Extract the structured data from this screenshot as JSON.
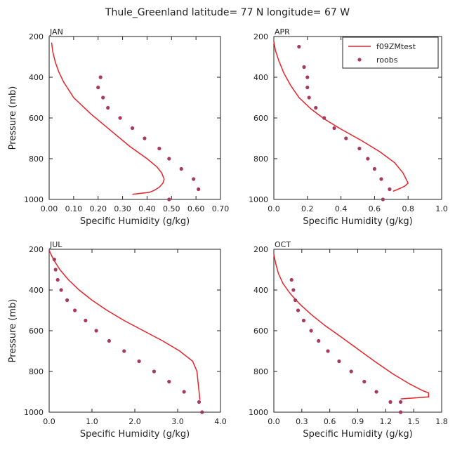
{
  "title": "Thule_Greenland   latitude= 77 N longitude= 67 W",
  "chart_data": [
    {
      "type": "line",
      "panel_label": "JAN",
      "xlabel": "Specific Humidity (g/kg)",
      "ylabel": "Pressure (mb)",
      "xlim": [
        0,
        0.7
      ],
      "ylim": [
        1000,
        200
      ],
      "y_inverted": true,
      "xticks": [
        0,
        0.1,
        0.2,
        0.3,
        0.4,
        0.5,
        0.6,
        0.7
      ],
      "xtick_labels": [
        "0.00",
        "0.10",
        "0.20",
        "0.30",
        "0.40",
        "0.50",
        "0.60",
        "0.70"
      ],
      "yticks": [
        200,
        400,
        600,
        800,
        1000
      ],
      "ytick_labels": [
        "200",
        "400",
        "600",
        "800",
        "1000"
      ],
      "legend": null,
      "series": [
        {
          "name": "f09ZMtest",
          "kind": "line",
          "color": "#e8232a",
          "x": [
            0.01,
            0.015,
            0.025,
            0.04,
            0.06,
            0.1,
            0.17,
            0.25,
            0.33,
            0.4,
            0.44,
            0.46,
            0.47,
            0.465,
            0.45,
            0.43,
            0.41,
            0.34
          ],
          "y": [
            230,
            275,
            325,
            375,
            425,
            500,
            580,
            660,
            740,
            800,
            840,
            870,
            900,
            920,
            940,
            955,
            965,
            975
          ]
        },
        {
          "name": "roobs",
          "kind": "scatter",
          "color": "#a83a5e",
          "x": [
            0.21,
            0.2,
            0.22,
            0.24,
            0.29,
            0.34,
            0.39,
            0.45,
            0.49,
            0.54,
            0.59,
            0.61,
            0.49
          ],
          "y": [
            400,
            450,
            500,
            550,
            600,
            650,
            700,
            750,
            800,
            850,
            900,
            950,
            1000
          ]
        }
      ]
    },
    {
      "type": "line",
      "panel_label": "APR",
      "xlabel": "Specific Humidity (g/kg)",
      "ylabel": "",
      "xlim": [
        0,
        1.0
      ],
      "ylim": [
        1000,
        200
      ],
      "y_inverted": true,
      "xticks": [
        0,
        0.2,
        0.4,
        0.6,
        0.8,
        1.0
      ],
      "xtick_labels": [
        "0.0",
        "0.2",
        "0.4",
        "0.6",
        "0.8",
        "1.0"
      ],
      "yticks": [
        200,
        400,
        600,
        800,
        1000
      ],
      "ytick_labels": [
        "200",
        "400",
        "600",
        "800",
        "1000"
      ],
      "legend": {
        "position": "top-right",
        "entries": [
          "f09ZMtest",
          "roobs"
        ]
      },
      "series": [
        {
          "name": "f09ZMtest",
          "kind": "line",
          "color": "#e8232a",
          "x": [
            0.0,
            0.01,
            0.03,
            0.06,
            0.1,
            0.15,
            0.22,
            0.3,
            0.4,
            0.52,
            0.63,
            0.72,
            0.77,
            0.8,
            0.78,
            0.76,
            0.74,
            0.71
          ],
          "y": [
            225,
            270,
            320,
            380,
            440,
            500,
            555,
            605,
            655,
            710,
            765,
            820,
            870,
            920,
            935,
            943,
            950,
            960
          ]
        },
        {
          "name": "roobs",
          "kind": "scatter",
          "color": "#a83a5e",
          "x": [
            0.15,
            0.18,
            0.2,
            0.2,
            0.21,
            0.25,
            0.3,
            0.36,
            0.43,
            0.51,
            0.56,
            0.6,
            0.64,
            0.69,
            0.65
          ],
          "y": [
            250,
            350,
            400,
            450,
            500,
            550,
            600,
            650,
            700,
            750,
            800,
            850,
            900,
            950,
            1000
          ]
        }
      ]
    },
    {
      "type": "line",
      "panel_label": "JUL",
      "xlabel": "Specific Humidity (g/kg)",
      "ylabel": "Pressure (mb)",
      "xlim": [
        0,
        4.0
      ],
      "ylim": [
        1000,
        200
      ],
      "y_inverted": true,
      "xticks": [
        0,
        1.0,
        2.0,
        3.0,
        4.0
      ],
      "xtick_labels": [
        "0.0",
        "1.0",
        "2.0",
        "3.0",
        "4.0"
      ],
      "yticks": [
        200,
        400,
        600,
        800,
        1000
      ],
      "ytick_labels": [
        "200",
        "400",
        "600",
        "800",
        "1000"
      ],
      "legend": null,
      "series": [
        {
          "name": "f09ZMtest",
          "kind": "line",
          "color": "#e8232a",
          "x": [
            0.0,
            0.1,
            0.25,
            0.45,
            0.7,
            1.0,
            1.35,
            1.75,
            2.2,
            2.65,
            3.05,
            3.35,
            3.45,
            3.5,
            3.52
          ],
          "y": [
            205,
            250,
            300,
            350,
            400,
            450,
            500,
            550,
            600,
            650,
            700,
            750,
            800,
            900,
            940
          ]
        },
        {
          "name": "roobs",
          "kind": "scatter",
          "color": "#a83a5e",
          "x": [
            0.12,
            0.15,
            0.2,
            0.28,
            0.42,
            0.6,
            0.85,
            1.1,
            1.4,
            1.75,
            2.1,
            2.45,
            2.8,
            3.15,
            3.5,
            3.57
          ],
          "y": [
            250,
            300,
            350,
            400,
            450,
            500,
            550,
            600,
            650,
            700,
            750,
            800,
            850,
            900,
            950,
            1000
          ]
        }
      ]
    },
    {
      "type": "line",
      "panel_label": "OCT",
      "xlabel": "Specific Humidity (g/kg)",
      "ylabel": "",
      "xlim": [
        0,
        1.8
      ],
      "ylim": [
        1000,
        200
      ],
      "y_inverted": true,
      "xticks": [
        0,
        0.3,
        0.6,
        0.9,
        1.2,
        1.5,
        1.8
      ],
      "xtick_labels": [
        "0.0",
        "0.3",
        "0.6",
        "0.9",
        "1.2",
        "1.5",
        "1.8"
      ],
      "yticks": [
        200,
        400,
        600,
        800,
        1000
      ],
      "ytick_labels": [
        "200",
        "400",
        "600",
        "800",
        "1000"
      ],
      "legend": null,
      "series": [
        {
          "name": "f09ZMtest",
          "kind": "line",
          "color": "#e8232a",
          "x": [
            0.0,
            0.02,
            0.05,
            0.1,
            0.18,
            0.28,
            0.4,
            0.55,
            0.72,
            0.9,
            1.08,
            1.27,
            1.45,
            1.6,
            1.66,
            1.66,
            1.36
          ],
          "y": [
            225,
            270,
            320,
            370,
            420,
            470,
            520,
            575,
            630,
            690,
            750,
            810,
            860,
            895,
            905,
            925,
            935
          ]
        },
        {
          "name": "roobs",
          "kind": "scatter",
          "color": "#a83a5e",
          "x": [
            0.19,
            0.21,
            0.23,
            0.26,
            0.32,
            0.4,
            0.48,
            0.58,
            0.7,
            0.83,
            0.97,
            1.1,
            1.25,
            1.36,
            1.36
          ],
          "y": [
            350,
            400,
            450,
            500,
            550,
            600,
            650,
            700,
            750,
            800,
            850,
            900,
            950,
            950,
            1000
          ]
        }
      ]
    }
  ]
}
